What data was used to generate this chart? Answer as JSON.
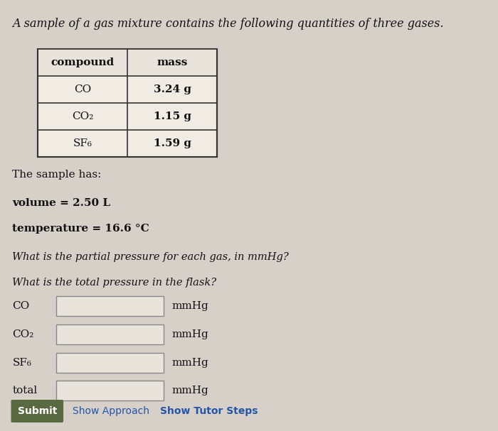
{
  "title": "A sample of a gas mixture contains the following quantities of three gases.",
  "table_headers": [
    "compound",
    "mass"
  ],
  "table_rows": [
    [
      "CO",
      "3.24 g"
    ],
    [
      "CO₂",
      "1.15 g"
    ],
    [
      "SF₆",
      "1.59 g"
    ]
  ],
  "sample_has": "The sample has:",
  "volume_text": "volume = 2.50 L",
  "temperature_text": "temperature = 16.6 °C",
  "question1": "What is the partial pressure for each gas, in mmHg?",
  "question2": "What is the total pressure in the flask?",
  "answer_labels": [
    "CO",
    "CO₂",
    "SF₆",
    "total"
  ],
  "unit": "mmHg",
  "submit_label": "Submit",
  "show_approach": "Show Approach",
  "show_tutor": "Show Tutor Steps",
  "bg_color": "#d6d0c8",
  "table_bg": "#f0ece4",
  "header_bg": "#e8e4dc",
  "submit_bg": "#5a6a40",
  "submit_text_color": "#ffffff",
  "link_color": "#2255aa",
  "text_color": "#111111",
  "input_box_color": "#e8e4dc",
  "input_box_border": "#888888"
}
